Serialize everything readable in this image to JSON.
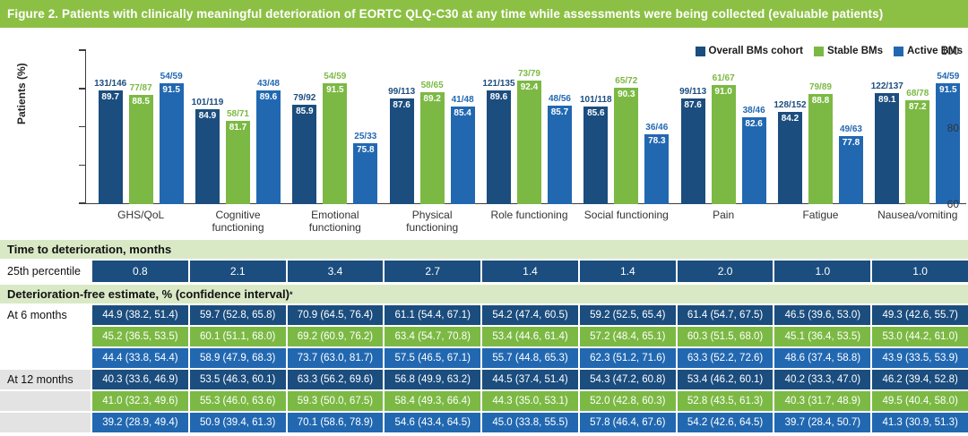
{
  "title": "Figure 2. Patients with clinically meaningful deterioration of EORTC QLQ-C30 at any time while assessments were being collected (evaluable patients)",
  "colors": {
    "navy": "#1B4D7E",
    "green": "#7CB944",
    "blue": "#2268B1",
    "title_bg": "#8CC044",
    "band_bg": "#D9E9C6",
    "label_gray": "#E3E3E3"
  },
  "chart_data": {
    "type": "bar",
    "title": "Patients with clinically meaningful deterioration of EORTC QLQ-C30",
    "ylabel": "Patients (%)",
    "xlabel": "",
    "ylim": [
      60,
      100
    ],
    "yticks_labeled": [
      60,
      80,
      100
    ],
    "yticks_minor": [
      70,
      90
    ],
    "grid": false,
    "legend_position": "top-right",
    "categories": [
      "GHS/QoL",
      "Cognitive\nfunctioning",
      "Emotional\nfunctioning",
      "Physical\nfunctioning",
      "Role functioning",
      "Social functioning",
      "Pain",
      "Fatigue",
      "Nausea/vomiting"
    ],
    "series": [
      {
        "name": "Overall BMs cohort",
        "tone": "navy",
        "values": [
          89.7,
          84.9,
          85.9,
          87.6,
          89.6,
          85.6,
          87.6,
          84.2,
          89.1
        ],
        "fractions": [
          "131/146",
          "101/119",
          "79/92",
          "99/113",
          "121/135",
          "101/118",
          "99/113",
          "128/152",
          "122/137"
        ]
      },
      {
        "name": "Stable BMs",
        "tone": "green",
        "values": [
          88.5,
          81.7,
          91.5,
          89.2,
          92.4,
          90.3,
          91.0,
          88.8,
          87.2
        ],
        "fractions": [
          "77/87",
          "58/71",
          "54/59",
          "58/65",
          "73/79",
          "65/72",
          "61/67",
          "79/89",
          "68/78"
        ]
      },
      {
        "name": "Active BMs",
        "tone": "blue",
        "values": [
          91.5,
          89.6,
          75.8,
          85.4,
          85.7,
          78.3,
          82.6,
          77.8,
          91.5
        ],
        "fractions": [
          "54/59",
          "43/48",
          "25/33",
          "41/48",
          "48/56",
          "36/46",
          "38/46",
          "49/63",
          "54/59"
        ]
      }
    ]
  },
  "table": {
    "section1_header": "Time to deterioration, months",
    "percentile_label": "25th percentile",
    "percentile_values": [
      "0.8",
      "2.1",
      "3.4",
      "2.7",
      "1.4",
      "1.4",
      "2.0",
      "1.0",
      "1.0"
    ],
    "section2_header": "Deterioration-free estimate, % (confidence interval)",
    "section2_superscript": "*",
    "row_groups": [
      {
        "label": "At 6 months",
        "label_tone": "white",
        "rows": [
          {
            "tone": "navy",
            "cells": [
              "44.9 (38.2, 51.4)",
              "59.7 (52.8, 65.8)",
              "70.9 (64.5, 76.4)",
              "61.1 (54.4, 67.1)",
              "54.2 (47.4, 60.5)",
              "59.2 (52.5, 65.4)",
              "61.4 (54.7, 67.5)",
              "46.5 (39.6, 53.0)",
              "49.3 (42.6, 55.7)"
            ]
          },
          {
            "tone": "green",
            "cells": [
              "45.2 (36.5, 53.5)",
              "60.1 (51.1, 68.0)",
              "69.2 (60.9, 76.2)",
              "63.4 (54.7, 70.8)",
              "53.4 (44.6, 61.4)",
              "57.2 (48.4, 65.1)",
              "60.3 (51.5, 68.0)",
              "45.1 (36.4, 53.5)",
              "53.0 (44.2, 61.0)"
            ]
          },
          {
            "tone": "blue",
            "cells": [
              "44.4 (33.8, 54.4)",
              "58.9 (47.9, 68.3)",
              "73.7 (63.0, 81.7)",
              "57.5 (46.5, 67.1)",
              "55.7 (44.8, 65.3)",
              "62.3 (51.2, 71.6)",
              "63.3 (52.2, 72.6)",
              "48.6 (37.4, 58.8)",
              "43.9 (33.5, 53.9)"
            ]
          }
        ]
      },
      {
        "label": "At 12 months",
        "label_tone": "gray",
        "rows": [
          {
            "tone": "navy",
            "cells": [
              "40.3 (33.6, 46.9)",
              "53.5 (46.3, 60.1)",
              "63.3 (56.2, 69.6)",
              "56.8 (49.9, 63.2)",
              "44.5 (37.4, 51.4)",
              "54.3 (47.2, 60.8)",
              "53.4 (46.2, 60.1)",
              "40.2 (33.3, 47.0)",
              "46.2 (39.4, 52.8)"
            ]
          },
          {
            "tone": "green",
            "cells": [
              "41.0 (32.3, 49.6)",
              "55.3 (46.0, 63.6)",
              "59.3 (50.0, 67.5)",
              "58.4 (49.3, 66.4)",
              "44.3 (35.0, 53.1)",
              "52.0 (42.8, 60.3)",
              "52.8 (43.5, 61.3)",
              "40.3 (31.7, 48.9)",
              "49.5 (40.4, 58.0)"
            ]
          },
          {
            "tone": "blue",
            "cells": [
              "39.2 (28.9, 49.4)",
              "50.9 (39.4, 61.3)",
              "70.1 (58.6, 78.9)",
              "54.6 (43.4, 64.5)",
              "45.0 (33.8, 55.5)",
              "57.8 (46.4, 67.6)",
              "54.2 (42.6, 64.5)",
              "39.7 (28.4, 50.7)",
              "41.3 (30.9, 51.3)"
            ]
          }
        ]
      }
    ]
  }
}
